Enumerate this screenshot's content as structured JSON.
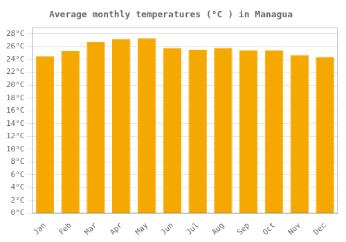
{
  "chart_data": {
    "type": "bar",
    "title": "Average monthly temperatures (°C ) in Managua",
    "categories": [
      "Jan",
      "Feb",
      "Mar",
      "Apr",
      "May",
      "Jun",
      "Jul",
      "Aug",
      "Sep",
      "Oct",
      "Nov",
      "Dec"
    ],
    "values": [
      24.5,
      25.3,
      26.7,
      27.2,
      27.3,
      25.8,
      25.5,
      25.8,
      25.4,
      25.4,
      24.7,
      24.4
    ],
    "color": "#F5A800",
    "ylim": [
      0,
      29
    ],
    "yticks": [
      {
        "value": 0,
        "label": "0°C"
      },
      {
        "value": 2,
        "label": "2°C"
      },
      {
        "value": 4,
        "label": "4°C"
      },
      {
        "value": 6,
        "label": "6°C"
      },
      {
        "value": 8,
        "label": "8°C"
      },
      {
        "value": 10,
        "label": "10°C"
      },
      {
        "value": 12,
        "label": "12°C"
      },
      {
        "value": 14,
        "label": "14°C"
      },
      {
        "value": 16,
        "label": "16°C"
      },
      {
        "value": 18,
        "label": "18°C"
      },
      {
        "value": 20,
        "label": "20°C"
      },
      {
        "value": 22,
        "label": "22°C"
      },
      {
        "value": 24,
        "label": "24°C"
      },
      {
        "value": 26,
        "label": "26°C"
      },
      {
        "value": 28,
        "label": "28°C"
      }
    ],
    "grid": true
  }
}
